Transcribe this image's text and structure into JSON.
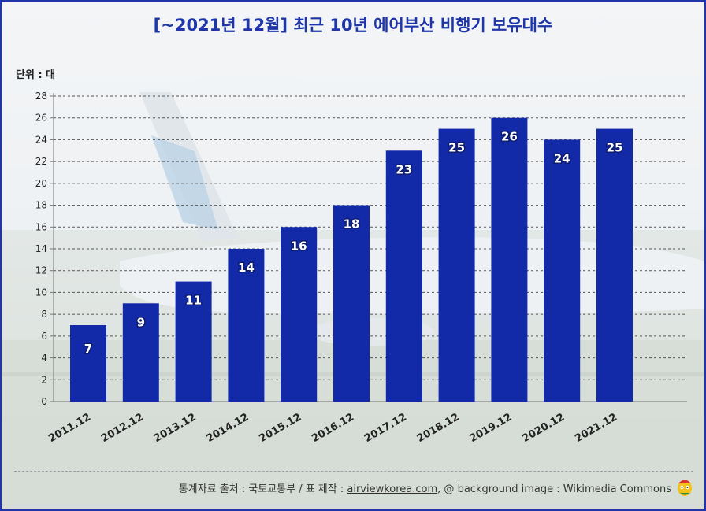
{
  "title": "[~2021년 12월] 최근 10년 에어부산 비행기 보유대수",
  "unit_label": "단위 : 대",
  "footer": {
    "source_prefix": "통계자료 출처 : 국토교통부 / 표 제작 : ",
    "site": "airviewkorea.com",
    "source_suffix": ", @ background image : Wikimedia Commons"
  },
  "colors": {
    "bar": "#1229a8",
    "title": "#1f36a8",
    "frame": "#1f36a8"
  },
  "chart_data": {
    "type": "bar",
    "title": "[~2021년 12월] 최근 10년 에어부산 비행기 보유대수",
    "ylabel": "단위 : 대",
    "xlabel": "",
    "categories": [
      "2011.12",
      "2012.12",
      "2013.12",
      "2014.12",
      "2015.12",
      "2016.12",
      "2017.12",
      "2018.12",
      "2019.12",
      "2020.12",
      "2021.12"
    ],
    "values": [
      7,
      9,
      11,
      14,
      16,
      18,
      23,
      25,
      26,
      24,
      25
    ],
    "ylim": [
      0,
      28
    ],
    "yticks": [
      0,
      2,
      4,
      6,
      8,
      10,
      12,
      14,
      16,
      18,
      20,
      22,
      24,
      26,
      28
    ],
    "grid": true,
    "legend": "none"
  }
}
